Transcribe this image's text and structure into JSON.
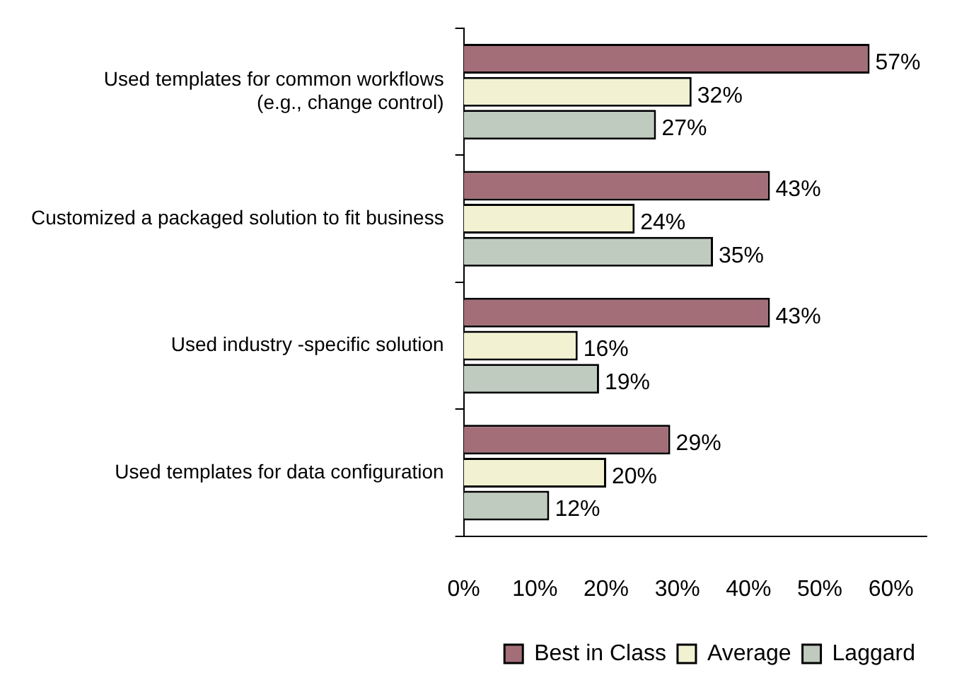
{
  "chart_data": {
    "type": "bar",
    "orientation": "horizontal",
    "categories": [
      "Used templates for common workflows\n(e.g., change control)",
      "Customized a packaged solution to fit business",
      "Used industry -specific solution",
      "Used templates for data configuration"
    ],
    "series": [
      {
        "name": "Best in Class",
        "color": "#a36e78",
        "values": [
          57,
          43,
          43,
          29
        ],
        "value_labels": [
          "57%",
          "43%",
          "43%",
          "29%"
        ]
      },
      {
        "name": "Average",
        "color": "#f2f2d2",
        "values": [
          32,
          24,
          16,
          20
        ],
        "value_labels": [
          "32%",
          "24%",
          "16%",
          "20%"
        ]
      },
      {
        "name": "Laggard",
        "color": "#bfcbbf",
        "values": [
          27,
          35,
          19,
          12
        ],
        "value_labels": [
          "27%",
          "35%",
          "19%",
          "12%"
        ]
      }
    ],
    "xlim": [
      0,
      65
    ],
    "xticks": [
      {
        "value": 0,
        "label": "0%"
      },
      {
        "value": 10,
        "label": "10%"
      },
      {
        "value": 20,
        "label": "20%"
      },
      {
        "value": 30,
        "label": "30%"
      },
      {
        "value": 40,
        "label": "40%"
      },
      {
        "value": 50,
        "label": "50%"
      },
      {
        "value": 60,
        "label": "60%"
      }
    ],
    "grid": false,
    "legend": "bottom"
  }
}
